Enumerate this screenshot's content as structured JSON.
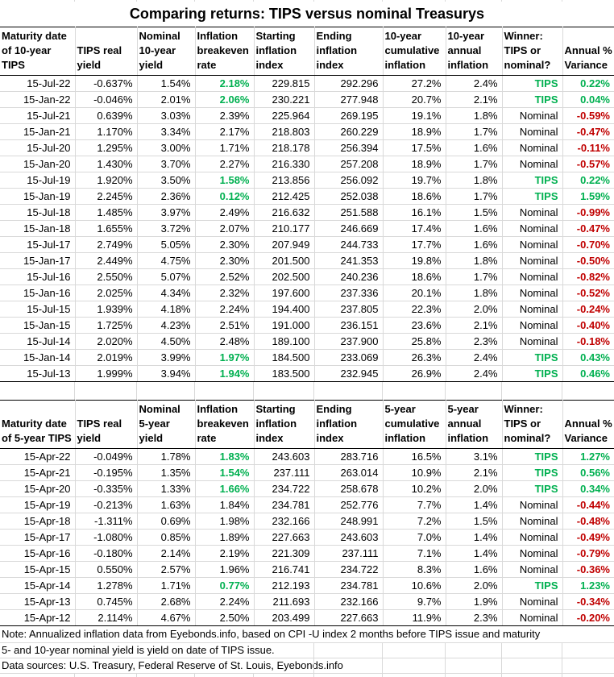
{
  "title": "Comparing returns: TIPS versus nominal Treasurys",
  "colors": {
    "tips_green": "#00B050",
    "negative_red": "#C00000",
    "gridline": "#D9D9D9",
    "table_border": "#000000"
  },
  "tables": [
    {
      "name": "10-year TIPS comparison",
      "column_headers": [
        [
          "Maturity date",
          "of 10-year",
          "TIPS"
        ],
        [
          "TIPS real",
          "yield"
        ],
        [
          "Nominal",
          "10-year",
          "yield"
        ],
        [
          "Inflation",
          "breakeven",
          "rate"
        ],
        [
          "Starting",
          "inflation",
          "index"
        ],
        [
          "Ending",
          "inflation",
          "index"
        ],
        [
          "10-year",
          "cumulative",
          "inflation"
        ],
        [
          "10-year",
          "annual",
          "inflation"
        ],
        [
          "Winner:",
          "TIPS or",
          "nominal?"
        ],
        [
          "Annual %",
          "Variance"
        ]
      ],
      "rows": [
        [
          "15-Jul-22",
          "-0.637%",
          "1.54%",
          "2.18%",
          "229.815",
          "292.296",
          "27.2%",
          "2.4%",
          "TIPS",
          "0.22%"
        ],
        [
          "15-Jan-22",
          "-0.046%",
          "2.01%",
          "2.06%",
          "230.221",
          "277.948",
          "20.7%",
          "2.1%",
          "TIPS",
          "0.04%"
        ],
        [
          "15-Jul-21",
          "0.639%",
          "3.03%",
          "2.39%",
          "225.964",
          "269.195",
          "19.1%",
          "1.8%",
          "Nominal",
          "-0.59%"
        ],
        [
          "15-Jan-21",
          "1.170%",
          "3.34%",
          "2.17%",
          "218.803",
          "260.229",
          "18.9%",
          "1.7%",
          "Nominal",
          "-0.47%"
        ],
        [
          "15-Jul-20",
          "1.295%",
          "3.00%",
          "1.71%",
          "218.178",
          "256.394",
          "17.5%",
          "1.6%",
          "Nominal",
          "-0.11%"
        ],
        [
          "15-Jan-20",
          "1.430%",
          "3.70%",
          "2.27%",
          "216.330",
          "257.208",
          "18.9%",
          "1.7%",
          "Nominal",
          "-0.57%"
        ],
        [
          "15-Jul-19",
          "1.920%",
          "3.50%",
          "1.58%",
          "213.856",
          "256.092",
          "19.7%",
          "1.8%",
          "TIPS",
          "0.22%"
        ],
        [
          "15-Jan-19",
          "2.245%",
          "2.36%",
          "0.12%",
          "212.425",
          "252.038",
          "18.6%",
          "1.7%",
          "TIPS",
          "1.59%"
        ],
        [
          "15-Jul-18",
          "1.485%",
          "3.97%",
          "2.49%",
          "216.632",
          "251.588",
          "16.1%",
          "1.5%",
          "Nominal",
          "-0.99%"
        ],
        [
          "15-Jan-18",
          "1.655%",
          "3.72%",
          "2.07%",
          "210.177",
          "246.669",
          "17.4%",
          "1.6%",
          "Nominal",
          "-0.47%"
        ],
        [
          "15-Jul-17",
          "2.749%",
          "5.05%",
          "2.30%",
          "207.949",
          "244.733",
          "17.7%",
          "1.6%",
          "Nominal",
          "-0.70%"
        ],
        [
          "15-Jan-17",
          "2.449%",
          "4.75%",
          "2.30%",
          "201.500",
          "241.353",
          "19.8%",
          "1.8%",
          "Nominal",
          "-0.50%"
        ],
        [
          "15-Jul-16",
          "2.550%",
          "5.07%",
          "2.52%",
          "202.500",
          "240.236",
          "18.6%",
          "1.7%",
          "Nominal",
          "-0.82%"
        ],
        [
          "15-Jan-16",
          "2.025%",
          "4.34%",
          "2.32%",
          "197.600",
          "237.336",
          "20.1%",
          "1.8%",
          "Nominal",
          "-0.52%"
        ],
        [
          "15-Jul-15",
          "1.939%",
          "4.18%",
          "2.24%",
          "194.400",
          "237.805",
          "22.3%",
          "2.0%",
          "Nominal",
          "-0.24%"
        ],
        [
          "15-Jan-15",
          "1.725%",
          "4.23%",
          "2.51%",
          "191.000",
          "236.151",
          "23.6%",
          "2.1%",
          "Nominal",
          "-0.40%"
        ],
        [
          "15-Jul-14",
          "2.020%",
          "4.50%",
          "2.48%",
          "189.100",
          "237.900",
          "25.8%",
          "2.3%",
          "Nominal",
          "-0.18%"
        ],
        [
          "15-Jan-14",
          "2.019%",
          "3.99%",
          "1.97%",
          "184.500",
          "233.069",
          "26.3%",
          "2.4%",
          "TIPS",
          "0.43%"
        ],
        [
          "15-Jul-13",
          "1.999%",
          "3.94%",
          "1.94%",
          "183.500",
          "232.945",
          "26.9%",
          "2.4%",
          "TIPS",
          "0.46%"
        ]
      ]
    },
    {
      "name": "5-year TIPS comparison",
      "column_headers": [
        [
          "Maturity date",
          "of 5-year TIPS"
        ],
        [
          "TIPS real",
          "yield"
        ],
        [
          "Nominal",
          "5-year",
          "yield"
        ],
        [
          "Inflation",
          "breakeven",
          "rate"
        ],
        [
          "Starting",
          "inflation",
          "index"
        ],
        [
          "Ending",
          "inflation",
          "index"
        ],
        [
          "5-year",
          "cumulative",
          "inflation"
        ],
        [
          "5-year",
          "annual",
          "inflation"
        ],
        [
          "Winner:",
          "TIPS or",
          "nominal?"
        ],
        [
          "Annual %",
          "Variance"
        ]
      ],
      "rows": [
        [
          "15-Apr-22",
          "-0.049%",
          "1.78%",
          "1.83%",
          "243.603",
          "283.716",
          "16.5%",
          "3.1%",
          "TIPS",
          "1.27%"
        ],
        [
          "15-Apr-21",
          "-0.195%",
          "1.35%",
          "1.54%",
          "237.111",
          "263.014",
          "10.9%",
          "2.1%",
          "TIPS",
          "0.56%"
        ],
        [
          "15-Apr-20",
          "-0.335%",
          "1.33%",
          "1.66%",
          "234.722",
          "258.678",
          "10.2%",
          "2.0%",
          "TIPS",
          "0.34%"
        ],
        [
          "15-Apr-19",
          "-0.213%",
          "1.63%",
          "1.84%",
          "234.781",
          "252.776",
          "7.7%",
          "1.4%",
          "Nominal",
          "-0.44%"
        ],
        [
          "15-Apr-18",
          "-1.311%",
          "0.69%",
          "1.98%",
          "232.166",
          "248.991",
          "7.2%",
          "1.5%",
          "Nominal",
          "-0.48%"
        ],
        [
          "15-Apr-17",
          "-1.080%",
          "0.85%",
          "1.89%",
          "227.663",
          "243.603",
          "7.0%",
          "1.4%",
          "Nominal",
          "-0.49%"
        ],
        [
          "15-Apr-16",
          "-0.180%",
          "2.14%",
          "2.19%",
          "221.309",
          "237.111",
          "7.1%",
          "1.4%",
          "Nominal",
          "-0.79%"
        ],
        [
          "15-Apr-15",
          "0.550%",
          "2.57%",
          "1.96%",
          "216.741",
          "234.722",
          "8.3%",
          "1.6%",
          "Nominal",
          "-0.36%"
        ],
        [
          "15-Apr-14",
          "1.278%",
          "1.71%",
          "0.77%",
          "212.193",
          "234.781",
          "10.6%",
          "2.0%",
          "TIPS",
          "1.23%"
        ],
        [
          "15-Apr-13",
          "0.745%",
          "2.68%",
          "2.24%",
          "211.693",
          "232.166",
          "9.7%",
          "1.9%",
          "Nominal",
          "-0.34%"
        ],
        [
          "15-Apr-12",
          "2.114%",
          "4.67%",
          "2.50%",
          "203.499",
          "227.663",
          "11.9%",
          "2.3%",
          "Nominal",
          "-0.20%"
        ]
      ]
    }
  ],
  "notes": [
    "Note: Annualized inflation data from Eyebonds.info, based on CPI -U index 2 months before TIPS issue and maturity",
    "5- and 10-year nominal yield is yield on date of TIPS issue.",
    "Data sources: U.S. Treasury, Federal Reserve of St. Louis, Eyebonds.info"
  ]
}
